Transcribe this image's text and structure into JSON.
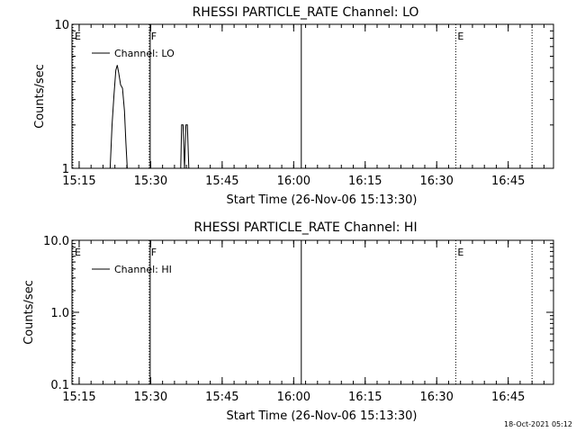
{
  "chart_data": [
    {
      "type": "line",
      "title": "RHESSI PARTICLE_RATE Channel: LO",
      "xlabel": "Start Time (26-Nov-06 15:13:30)",
      "ylabel": "Counts/sec",
      "yscale": "log",
      "ylim": [
        1,
        10
      ],
      "ytick_labels": [
        "1",
        "10"
      ],
      "xlim_min": [
        0,
        101
      ],
      "xtick_labels": [
        "15:15",
        "15:30",
        "15:45",
        "16:00",
        "16:15",
        "16:30",
        "16:45"
      ],
      "legend": "top-left",
      "series": [
        {
          "name": "Channel: LO",
          "points": [
            [
              7.6,
              0.6
            ],
            [
              8.0,
              1
            ],
            [
              8.4,
              2
            ],
            [
              8.8,
              3.2
            ],
            [
              9.2,
              4.8
            ],
            [
              9.5,
              5.2
            ],
            [
              9.8,
              4.6
            ],
            [
              10.2,
              3.8
            ],
            [
              10.6,
              3.6
            ],
            [
              11.0,
              2.5
            ],
            [
              11.3,
              1.5
            ],
            [
              11.6,
              1
            ],
            [
              11.9,
              0.6
            ],
            [
              22.8,
              0.6
            ],
            [
              23.0,
              2
            ],
            [
              23.3,
              2
            ],
            [
              23.6,
              1
            ],
            [
              23.9,
              2
            ],
            [
              24.2,
              2
            ],
            [
              24.5,
              0.6
            ]
          ]
        }
      ],
      "markers": [
        {
          "label": "E",
          "min": 0,
          "style": "dotted"
        },
        {
          "label": "F",
          "min": 16.2,
          "style": "dotted"
        },
        {
          "label": "",
          "min": 16.4,
          "style": "solid"
        },
        {
          "label": "",
          "min": 48.1,
          "style": "solid"
        },
        {
          "label": "E",
          "min": 80.5,
          "style": "dotted"
        },
        {
          "label": "",
          "min": 96.5,
          "style": "dotted"
        }
      ]
    },
    {
      "type": "line",
      "title": "RHESSI PARTICLE_RATE Channel: HI",
      "xlabel": "Start Time (26-Nov-06 15:13:30)",
      "ylabel": "Counts/sec",
      "yscale": "log",
      "ylim": [
        0.1,
        10
      ],
      "ytick_labels": [
        "0.1",
        "1.0",
        "10.0"
      ],
      "xlim_min": [
        0,
        101
      ],
      "xtick_labels": [
        "15:15",
        "15:30",
        "15:45",
        "16:00",
        "16:15",
        "16:30",
        "16:45"
      ],
      "legend": "top-left",
      "series": [
        {
          "name": "Channel: HI",
          "points": []
        }
      ],
      "markers": [
        {
          "label": "E",
          "min": 0,
          "style": "dotted"
        },
        {
          "label": "F",
          "min": 16.2,
          "style": "dotted"
        },
        {
          "label": "",
          "min": 16.4,
          "style": "solid"
        },
        {
          "label": "",
          "min": 48.1,
          "style": "solid"
        },
        {
          "label": "E",
          "min": 80.5,
          "style": "dotted"
        },
        {
          "label": "",
          "min": 96.5,
          "style": "dotted"
        }
      ]
    }
  ],
  "footer": {
    "timestamp": "18-Oct-2021 05:12"
  }
}
